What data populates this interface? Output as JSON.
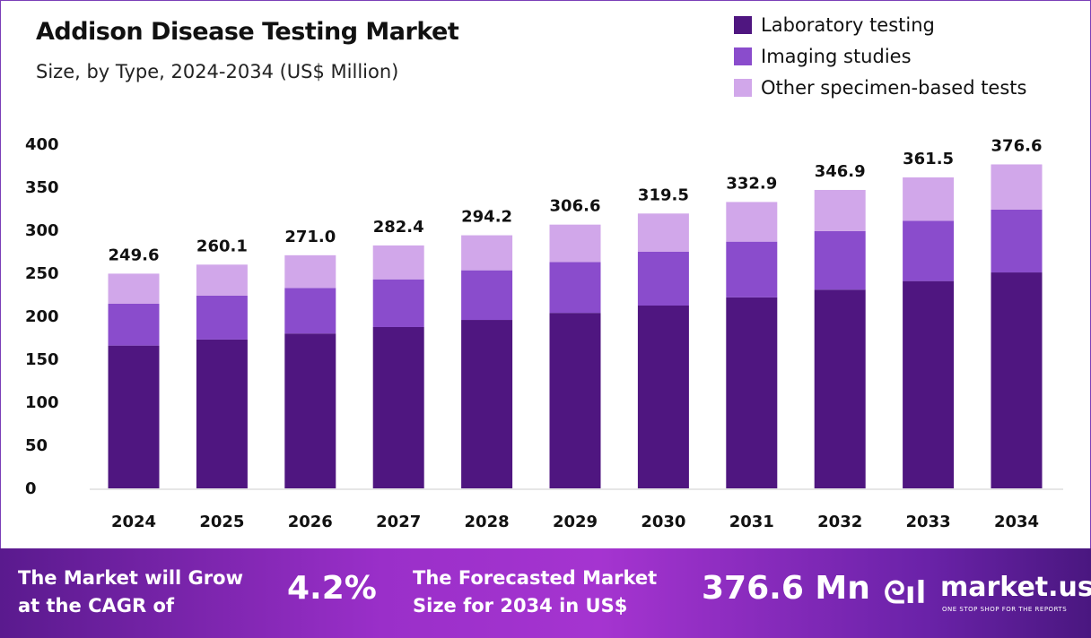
{
  "chart_data": {
    "type": "bar",
    "stacked": true,
    "title": "Addison Disease Testing Market",
    "subtitle": "Size, by Type, 2024-2034 (US$ Million)",
    "categories": [
      "2024",
      "2025",
      "2026",
      "2027",
      "2028",
      "2029",
      "2030",
      "2031",
      "2032",
      "2033",
      "2034"
    ],
    "series": [
      {
        "name": "Laboratory testing",
        "color": "#4f1680",
        "values": [
          166.0,
          173.0,
          180.0,
          187.5,
          195.8,
          204.0,
          212.5,
          222.0,
          231.0,
          241.0,
          251.0
        ]
      },
      {
        "name": "Imaging studies",
        "color": "#8a4ccc",
        "values": [
          48.6,
          51.0,
          53.0,
          55.5,
          57.7,
          59.0,
          62.5,
          64.8,
          68.0,
          70.0,
          73.0
        ]
      },
      {
        "name": "Other specimen-based tests",
        "color": "#d1a7ea",
        "values": [
          35.0,
          36.1,
          38.0,
          39.4,
          40.7,
          43.6,
          44.5,
          46.1,
          47.9,
          50.5,
          52.6
        ]
      }
    ],
    "totals": [
      "249.6",
      "260.1",
      "271.0",
      "282.4",
      "294.2",
      "306.6",
      "319.5",
      "332.9",
      "346.9",
      "361.5",
      "376.6"
    ],
    "yticks": [
      0,
      50,
      100,
      150,
      200,
      250,
      300,
      350,
      400
    ],
    "ylim": [
      0,
      400
    ],
    "grid": false,
    "legend": "top-right"
  },
  "banner": {
    "cagr_text_1": "The Market will Grow",
    "cagr_text_2": "at the CAGR of",
    "cagr_value": "4.2%",
    "forecast_text_1": "The Forecasted Market",
    "forecast_text_2": "Size for 2034 in US$",
    "forecast_value": "376.6 Mn",
    "logo": "market.us",
    "tagline": "ONE STOP SHOP FOR THE REPORTS"
  }
}
